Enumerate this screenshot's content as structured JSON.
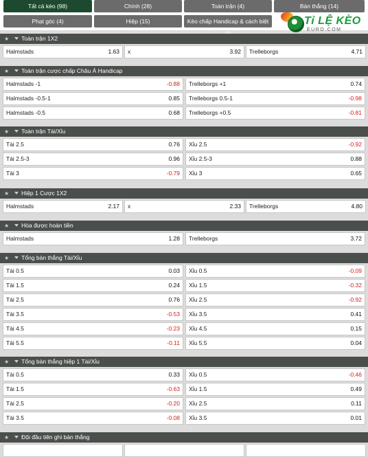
{
  "tabs": [
    {
      "label": "Tất cả kèo (98)",
      "active": true
    },
    {
      "label": "Chính (28)"
    },
    {
      "label": "Toàn trận (4)"
    },
    {
      "label": "Bàn thắng (14)"
    },
    {
      "label": "Phạt góc (4)"
    },
    {
      "label": "Hiệp (15)"
    },
    {
      "label": "Kèo chấp Handicap & cách biệt (3)"
    }
  ],
  "logo": {
    "text": "Tỉ LỆ KÈO",
    "sub": "EURO.COM"
  },
  "sections": [
    {
      "title": "Toàn trận 1X2",
      "rows": [
        [
          {
            "label": "Halmstads",
            "odd": "1.63"
          },
          {
            "label": "x",
            "odd": "3.92"
          },
          {
            "label": "Trelleborgs",
            "odd": "4.71"
          }
        ]
      ]
    },
    {
      "title": "Toàn trận cược chấp Châu Á Handicap",
      "rows": [
        [
          {
            "label": "Halmstads -1",
            "odd": "-0.88"
          },
          {
            "label": "Trelleborgs +1",
            "odd": "0.74"
          }
        ],
        [
          {
            "label": "Halmstads -0.5-1",
            "odd": "0.85"
          },
          {
            "label": "Trelleborgs 0.5-1",
            "odd": "-0.98"
          }
        ],
        [
          {
            "label": "Halmstads -0.5",
            "odd": "0.68"
          },
          {
            "label": "Trelleborgs +0.5",
            "odd": "-0.81"
          }
        ]
      ]
    },
    {
      "title": "Toàn trận Tài/Xỉu",
      "rows": [
        [
          {
            "label": "Tài 2.5",
            "odd": "0.76"
          },
          {
            "label": "Xỉu 2.5",
            "odd": "-0.92"
          }
        ],
        [
          {
            "label": "Tài 2.5-3",
            "odd": "0.96"
          },
          {
            "label": "Xỉu 2.5-3",
            "odd": "0.88"
          }
        ],
        [
          {
            "label": "Tài 3",
            "odd": "-0.79"
          },
          {
            "label": "Xỉu 3",
            "odd": "0.65"
          }
        ]
      ]
    },
    {
      "title": "Hiệp 1 Cược 1X2",
      "rows": [
        [
          {
            "label": "Halmstads",
            "odd": "2.17"
          },
          {
            "label": "x",
            "odd": "2.33"
          },
          {
            "label": "Trelleborgs",
            "odd": "4.80"
          }
        ]
      ]
    },
    {
      "title": "Hòa được hoàn tiền",
      "rows": [
        [
          {
            "label": "Halmstads",
            "odd": "1.28"
          },
          {
            "label": "Trelleborgs",
            "odd": "3.72"
          }
        ]
      ]
    },
    {
      "title": "Tổng bàn thắng Tài/Xỉu",
      "rows": [
        [
          {
            "label": "Tài 0.5",
            "odd": "0.03"
          },
          {
            "label": "Xỉu 0.5",
            "odd": "-0.09"
          }
        ],
        [
          {
            "label": "Tài 1.5",
            "odd": "0.24"
          },
          {
            "label": "Xỉu 1.5",
            "odd": "-0.32"
          }
        ],
        [
          {
            "label": "Tài 2.5",
            "odd": "0.76"
          },
          {
            "label": "Xỉu 2.5",
            "odd": "-0.92"
          }
        ],
        [
          {
            "label": "Tài 3.5",
            "odd": "-0.53"
          },
          {
            "label": "Xỉu 3.5",
            "odd": "0.41"
          }
        ],
        [
          {
            "label": "Tài 4.5",
            "odd": "-0.23"
          },
          {
            "label": "Xỉu 4.5",
            "odd": "0.15"
          }
        ],
        [
          {
            "label": "Tài 5.5",
            "odd": "-0.11"
          },
          {
            "label": "Xỉu 5.5",
            "odd": "0.04"
          }
        ]
      ]
    },
    {
      "title": "Tổng bàn thắng hiệp 1 Tài/Xỉu",
      "rows": [
        [
          {
            "label": "Tài 0.5",
            "odd": "0.33"
          },
          {
            "label": "Xỉu 0.5",
            "odd": "-0.46"
          }
        ],
        [
          {
            "label": "Tài 1.5",
            "odd": "-0.63"
          },
          {
            "label": "Xỉu 1.5",
            "odd": "0.49"
          }
        ],
        [
          {
            "label": "Tài 2.5",
            "odd": "-0.20"
          },
          {
            "label": "Xỉu 2.5",
            "odd": "0.11"
          }
        ],
        [
          {
            "label": "Tài 3.5",
            "odd": "-0.08"
          },
          {
            "label": "Xỉu 3.5",
            "odd": "0.01"
          }
        ]
      ]
    },
    {
      "title": "Đội đầu tiên ghi bàn thắng",
      "rows": [
        [
          {
            "label": "",
            "odd": ""
          },
          {
            "label": "",
            "odd": ""
          },
          {
            "label": "",
            "odd": ""
          }
        ]
      ]
    }
  ]
}
